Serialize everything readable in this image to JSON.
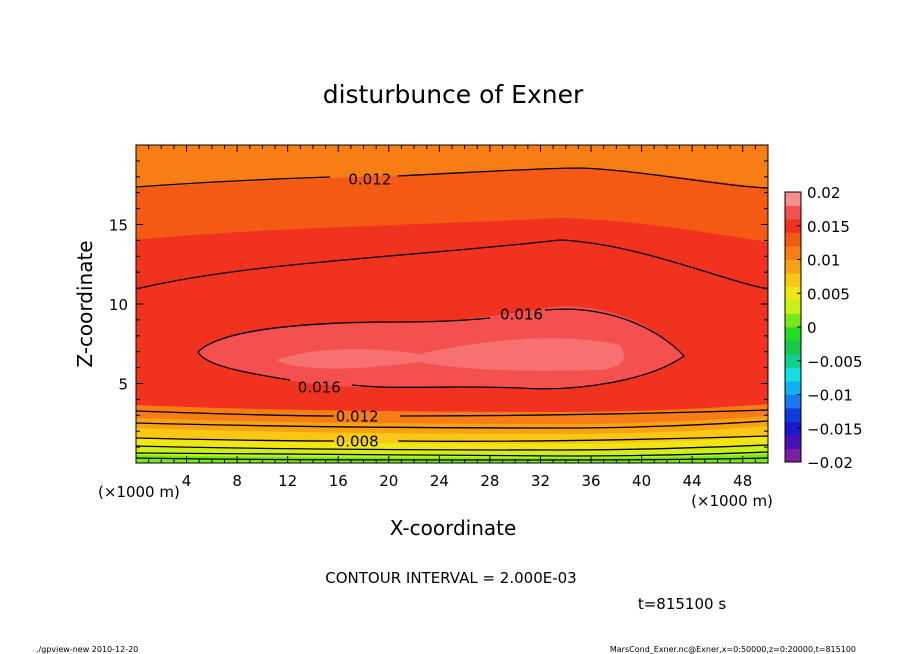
{
  "chart_data": {
    "type": "heatmap",
    "title": "disturbunce of Exner",
    "xlabel": "X-coordinate",
    "ylabel": "Z-coordinate",
    "x_unit": "(×1000 m)",
    "y_unit": "(×1000 m)",
    "xlim": [
      0,
      50
    ],
    "ylim": [
      0,
      20
    ],
    "x_ticks": [
      4,
      8,
      12,
      16,
      20,
      24,
      28,
      32,
      36,
      40,
      44,
      48
    ],
    "y_ticks": [
      5,
      10,
      15
    ],
    "colorbar": {
      "ticks": [
        "0.02",
        "0.015",
        "0.01",
        "0.005",
        "0",
        "-0.005",
        "-0.01",
        "-0.015",
        "-0.02"
      ],
      "range": [
        -0.02,
        0.02
      ],
      "levels": 20
    },
    "contour_labels": [
      {
        "text": "0.012",
        "x": 18.5,
        "z": 17.9
      },
      {
        "text": "0.016",
        "x": 30.5,
        "z": 9.4
      },
      {
        "text": "0.016",
        "x": 14.5,
        "z": 4.8
      },
      {
        "text": "0.012",
        "x": 17.5,
        "z": 3.0
      },
      {
        "text": "0.008",
        "x": 17.5,
        "z": 1.4
      }
    ],
    "contour_interval": "CONTOUR INTERVAL = 2.000E-03",
    "time": "t=815100 s"
  },
  "footer": {
    "left": "./gpview-new   2010-12-20",
    "right": "MarsCond_Exner.nc@Exner,x=0:50000,z=0:20000,t=815100"
  },
  "colors": {
    "levels": [
      "#7a1fa2",
      "#4b0fb8",
      "#1a1acc",
      "#0f3be0",
      "#1a78f0",
      "#12b0f0",
      "#12e0e0",
      "#10d090",
      "#18c848",
      "#22dc22",
      "#78e81a",
      "#c8f01a",
      "#f0e614",
      "#f8c814",
      "#f8a214",
      "#f87d14",
      "#f45a14",
      "#f0321e",
      "#f55050",
      "#fa8c8c"
    ]
  }
}
